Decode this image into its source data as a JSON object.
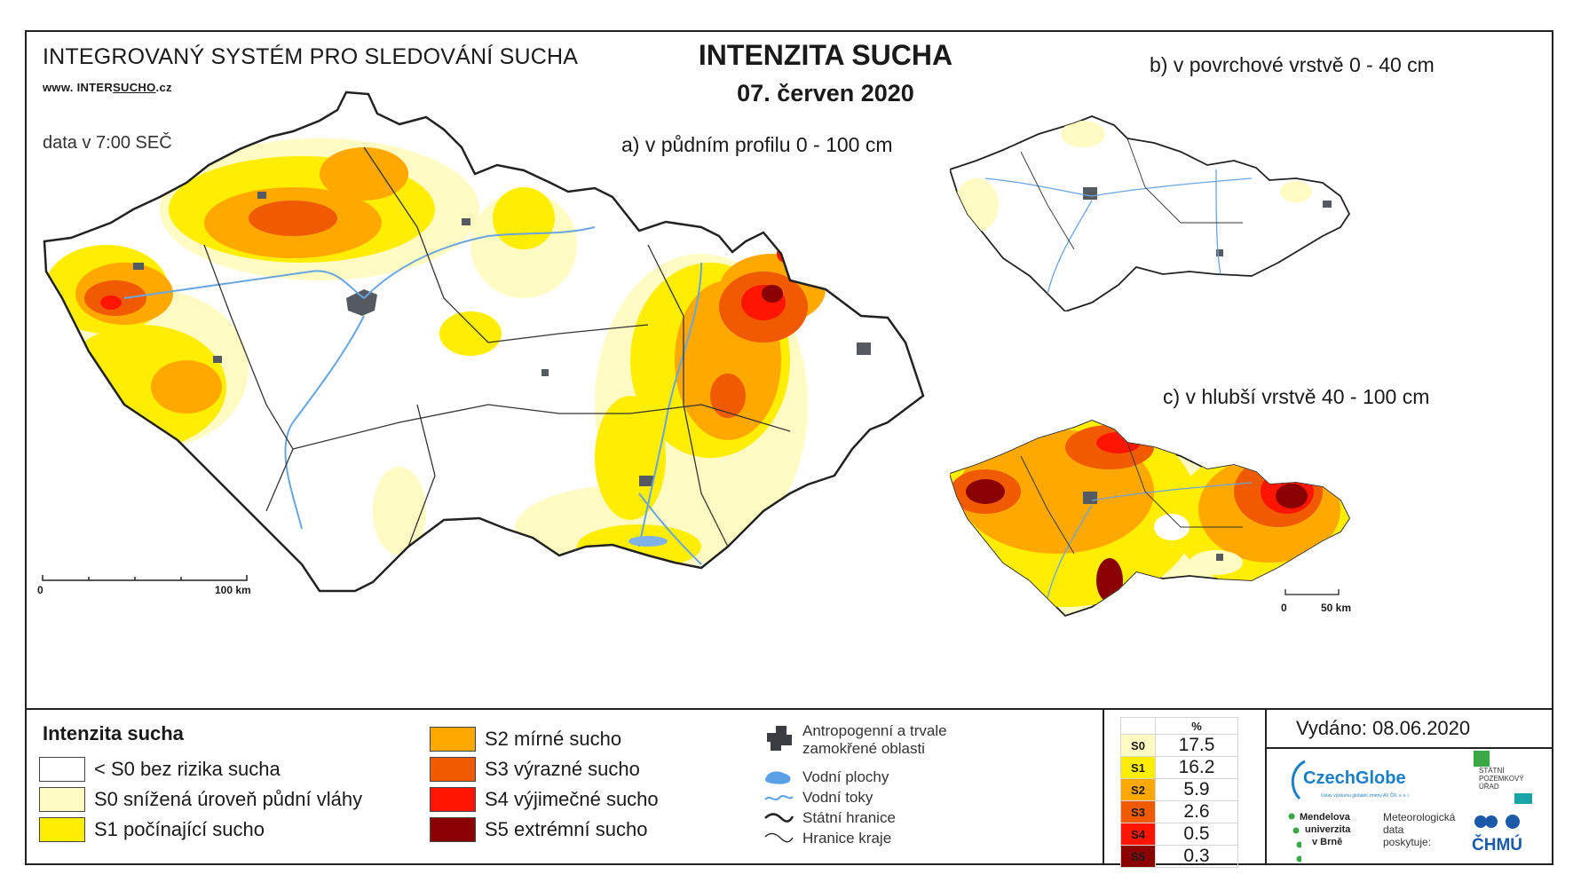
{
  "header": {
    "org_title": "INTEGROVANÝ SYSTÉM PRO SLEDOVÁNÍ SUCHA",
    "website_prefix": "www. INTER",
    "website_mid": "SUCHO",
    "website_suffix": ".cz",
    "data_time": "data v 7:00 SEČ",
    "main_title": "INTENZITA SUCHA",
    "date": "07. červen 2020"
  },
  "panels": {
    "a_label": "a) v půdním profilu 0 - 100 cm",
    "b_label": "b) v povrchové vrstvě 0 - 40 cm",
    "c_label": "c) v hlubší vrstvě 40 - 100 cm"
  },
  "scalebars": {
    "main_start": "0",
    "main_end": "100 km",
    "small_start": "0",
    "small_end": "50 km"
  },
  "legend": {
    "title": "Intenzita sucha",
    "classes": [
      {
        "label": "< S0 bez rizika sucha",
        "color": "#ffffff"
      },
      {
        "label": "S0 snížená úroveň půdní vláhy",
        "color": "#fffbc2"
      },
      {
        "label": "S1 počínající sucho",
        "color": "#ffee00"
      },
      {
        "label": "S2 mírné sucho",
        "color": "#ffa800"
      },
      {
        "label": "S3 výrazné sucho",
        "color": "#f05a00"
      },
      {
        "label": "S4 výjimečné sucho",
        "color": "#ff1500"
      },
      {
        "label": "S5 extrémní sucho",
        "color": "#8b0000"
      }
    ],
    "symbols": [
      {
        "icon": "urban-area-icon",
        "label1": "Antropogenní a trvale",
        "label2": "zamokřené oblasti"
      },
      {
        "icon": "water-body-icon",
        "label1": "Vodní plochy",
        "label2": ""
      },
      {
        "icon": "river-icon",
        "label1": "Vodní toky",
        "label2": ""
      },
      {
        "icon": "state-border-icon",
        "label1": "Státní hranice",
        "label2": ""
      },
      {
        "icon": "region-border-icon",
        "label1": "Hranice kraje",
        "label2": ""
      }
    ]
  },
  "stats": {
    "unit": "%",
    "rows": [
      {
        "class": "S0",
        "value": "17.5",
        "color": "#fffbc2"
      },
      {
        "class": "S1",
        "value": "16.2",
        "color": "#ffee00"
      },
      {
        "class": "S2",
        "value": "5.9",
        "color": "#ffa800"
      },
      {
        "class": "S3",
        "value": "2.6",
        "color": "#f05a00"
      },
      {
        "class": "S4",
        "value": "0.5",
        "color": "#ff1500"
      },
      {
        "class": "S5",
        "value": "0.3",
        "color": "#8b0000"
      }
    ]
  },
  "issued": {
    "label": "Vydáno: 08.06.2020"
  },
  "logos": {
    "czechglobe": "CzechGlobe",
    "czechglobe_sub": "Ústav výzkumu globální změny AV ČR, v. v. i.",
    "spu_1": "STÁTNÍ",
    "spu_2": "POZEMKOVÝ",
    "spu_3": "ÚŘAD",
    "mendelu_1": "Mendelova",
    "mendelu_2": "univerzita",
    "mendelu_3": "v Brně",
    "meteo_1": "Meteorologická",
    "meteo_2": "data",
    "meteo_3": "poskytuje:",
    "chmu": "ČHMÚ"
  },
  "colors": {
    "frame": "#222222",
    "river": "#6aa5e0",
    "urban": "#555a60"
  }
}
